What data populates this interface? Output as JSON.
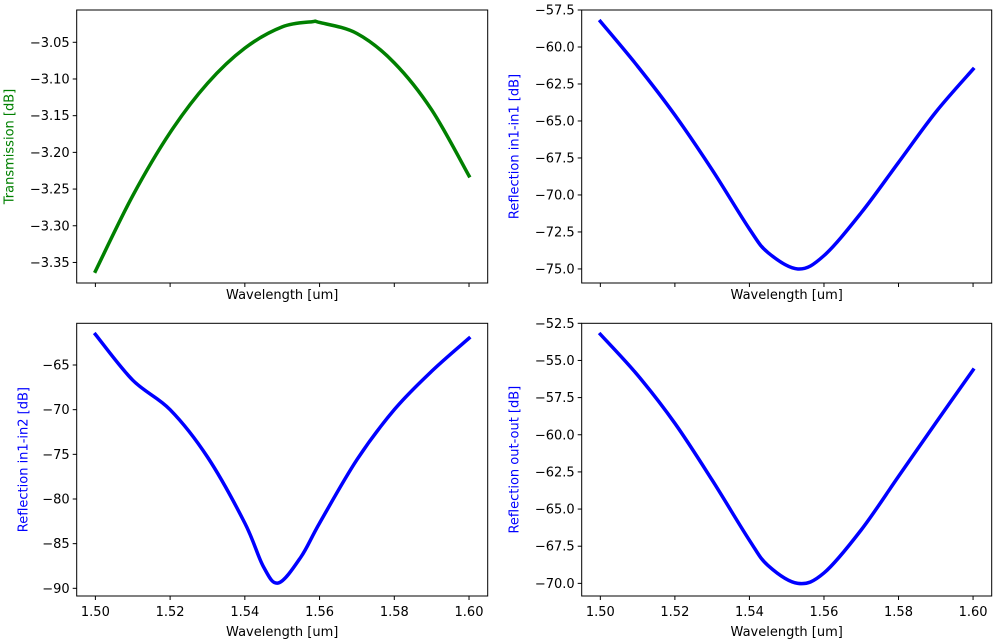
{
  "chart_data": [
    {
      "type": "line",
      "title": "",
      "xlabel": "Wavelength [um]",
      "ylabel": "Transmission [dB]",
      "color": "#008000",
      "xlim": [
        1.495,
        1.605
      ],
      "ylim": [
        -3.378,
        -3.006
      ],
      "xticks": [
        1.5,
        1.52,
        1.54,
        1.56,
        1.58,
        1.6
      ],
      "show_xtick_labels": false,
      "yticks": [
        -3.35,
        -3.3,
        -3.25,
        -3.2,
        -3.15,
        -3.1,
        -3.05
      ],
      "ytick_decimals": 2,
      "x": [
        1.5,
        1.51,
        1.52,
        1.53,
        1.54,
        1.55,
        1.558,
        1.56,
        1.57,
        1.58,
        1.59,
        1.6
      ],
      "y": [
        -3.362,
        -3.259,
        -3.173,
        -3.106,
        -3.058,
        -3.029,
        -3.022,
        -3.023,
        -3.038,
        -3.078,
        -3.142,
        -3.232
      ]
    },
    {
      "type": "line",
      "title": "",
      "xlabel": "Wavelength [um]",
      "ylabel": "Reflection in1-in1 [dB]",
      "color": "#0000ff",
      "xlim": [
        1.495,
        1.605
      ],
      "ylim": [
        -75.95,
        -57.5
      ],
      "xticks": [
        1.5,
        1.52,
        1.54,
        1.56,
        1.58,
        1.6
      ],
      "show_xtick_labels": false,
      "yticks": [
        -75.0,
        -72.5,
        -70.0,
        -67.5,
        -65.0,
        -62.5,
        -60.0,
        -57.5
      ],
      "ytick_decimals": 1,
      "x": [
        1.5,
        1.51,
        1.52,
        1.53,
        1.54,
        1.545,
        1.553,
        1.56,
        1.57,
        1.58,
        1.59,
        1.6
      ],
      "y": [
        -58.27,
        -61.3,
        -64.6,
        -68.3,
        -72.3,
        -73.9,
        -75.0,
        -74.1,
        -71.2,
        -67.8,
        -64.4,
        -61.5
      ]
    },
    {
      "type": "line",
      "title": "",
      "xlabel": "Wavelength [um]",
      "ylabel": "Reflection in1-in2 [dB]",
      "color": "#0000ff",
      "xlim": [
        1.495,
        1.605
      ],
      "ylim": [
        -90.86,
        -60.33
      ],
      "xticks": [
        1.5,
        1.52,
        1.54,
        1.56,
        1.58,
        1.6
      ],
      "show_xtick_labels": true,
      "xtick_decimals": 2,
      "yticks": [
        -90,
        -85,
        -80,
        -75,
        -70,
        -65
      ],
      "ytick_decimals": 0,
      "x": [
        1.5,
        1.51,
        1.52,
        1.53,
        1.54,
        1.545,
        1.549,
        1.555,
        1.56,
        1.57,
        1.58,
        1.59,
        1.6
      ],
      "y": [
        -61.57,
        -66.7,
        -70.0,
        -75.3,
        -82.7,
        -87.6,
        -89.4,
        -86.5,
        -82.7,
        -75.6,
        -70.0,
        -65.7,
        -62.0
      ]
    },
    {
      "type": "line",
      "title": "",
      "xlabel": "Wavelength [um]",
      "ylabel": "Reflection out-out [dB]",
      "color": "#0000ff",
      "xlim": [
        1.495,
        1.605
      ],
      "ylim": [
        -70.85,
        -52.5
      ],
      "xticks": [
        1.5,
        1.52,
        1.54,
        1.56,
        1.58,
        1.6
      ],
      "show_xtick_labels": true,
      "xtick_decimals": 2,
      "yticks": [
        -70.0,
        -67.5,
        -65.0,
        -62.5,
        -60.0,
        -57.5,
        -55.0,
        -52.5
      ],
      "ytick_decimals": 1,
      "x": [
        1.5,
        1.51,
        1.52,
        1.53,
        1.54,
        1.545,
        1.553,
        1.56,
        1.57,
        1.58,
        1.59,
        1.6
      ],
      "y": [
        -53.24,
        -55.99,
        -59.23,
        -63.05,
        -67.1,
        -68.8,
        -70.0,
        -69.3,
        -66.4,
        -62.8,
        -59.2,
        -55.64
      ]
    }
  ]
}
